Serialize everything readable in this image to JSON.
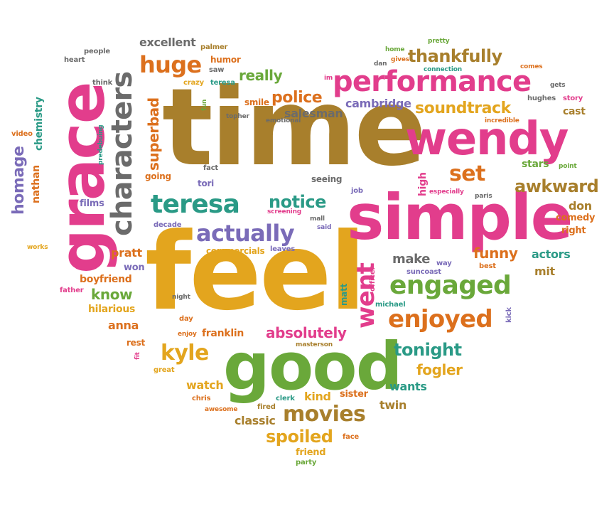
{
  "colors": {
    "brown": "#a87f2c",
    "pink": "#e23d8c",
    "yellow": "#e3a51e",
    "green": "#6aa83a",
    "teal": "#2a9a86",
    "orange": "#dc701d",
    "purple": "#7a6bb8",
    "gray": "#6b6b6b"
  },
  "words": [
    {
      "text": "time",
      "color": "brown"
    },
    {
      "text": "feel",
      "color": "yellow"
    },
    {
      "text": "simple",
      "color": "pink"
    },
    {
      "text": "grace",
      "color": "pink"
    },
    {
      "text": "good",
      "color": "green"
    },
    {
      "text": "wendy",
      "color": "pink"
    },
    {
      "text": "characters",
      "color": "gray"
    },
    {
      "text": "performance",
      "color": "pink"
    },
    {
      "text": "teresa",
      "color": "teal"
    },
    {
      "text": "actually",
      "color": "purple"
    },
    {
      "text": "engaged",
      "color": "green"
    },
    {
      "text": "enjoyed",
      "color": "orange"
    },
    {
      "text": "went",
      "color": "pink"
    },
    {
      "text": "huge",
      "color": "orange"
    },
    {
      "text": "thankfully",
      "color": "brown"
    },
    {
      "text": "movies",
      "color": "brown"
    },
    {
      "text": "kyle",
      "color": "yellow"
    },
    {
      "text": "set",
      "color": "orange"
    },
    {
      "text": "awkward",
      "color": "brown"
    },
    {
      "text": "homage",
      "color": "purple"
    },
    {
      "text": "superbad",
      "color": "orange"
    },
    {
      "text": "soundtrack",
      "color": "yellow"
    },
    {
      "text": "police",
      "color": "orange"
    },
    {
      "text": "notice",
      "color": "teal"
    },
    {
      "text": "absolutely",
      "color": "pink"
    },
    {
      "text": "spoiled",
      "color": "yellow"
    },
    {
      "text": "tonight",
      "color": "teal"
    },
    {
      "text": "really",
      "color": "green"
    },
    {
      "text": "excellent",
      "color": "gray"
    },
    {
      "text": "funny",
      "color": "orange"
    },
    {
      "text": "know",
      "color": "green"
    },
    {
      "text": "fogler",
      "color": "yellow"
    },
    {
      "text": "cambridge",
      "color": "purple"
    },
    {
      "text": "salesman",
      "color": "gray"
    },
    {
      "text": "make",
      "color": "gray"
    },
    {
      "text": "pratt",
      "color": "orange"
    },
    {
      "text": "anna",
      "color": "orange"
    },
    {
      "text": "hilarious",
      "color": "yellow"
    },
    {
      "text": "nathan",
      "color": "orange"
    },
    {
      "text": "chemistry",
      "color": "teal"
    },
    {
      "text": "actors",
      "color": "teal"
    },
    {
      "text": "stars",
      "color": "green"
    },
    {
      "text": "comedy",
      "color": "orange"
    },
    {
      "text": "don",
      "color": "brown"
    },
    {
      "text": "right",
      "color": "orange"
    },
    {
      "text": "mit",
      "color": "brown"
    },
    {
      "text": "cast",
      "color": "brown"
    },
    {
      "text": "twin",
      "color": "brown"
    },
    {
      "text": "classic",
      "color": "brown"
    },
    {
      "text": "watch",
      "color": "yellow"
    },
    {
      "text": "kind",
      "color": "yellow"
    },
    {
      "text": "wants",
      "color": "teal"
    },
    {
      "text": "sister",
      "color": "orange"
    },
    {
      "text": "friend",
      "color": "yellow"
    },
    {
      "text": "franklin",
      "color": "orange"
    },
    {
      "text": "boyfriend",
      "color": "orange"
    },
    {
      "text": "won",
      "color": "purple"
    },
    {
      "text": "commercials",
      "color": "yellow"
    },
    {
      "text": "matt",
      "color": "teal"
    },
    {
      "text": "high",
      "color": "pink"
    },
    {
      "text": "films",
      "color": "purple"
    },
    {
      "text": "smile",
      "color": "orange"
    },
    {
      "text": "humor",
      "color": "orange"
    },
    {
      "text": "teresa",
      "color": "teal"
    },
    {
      "text": "going",
      "color": "orange"
    },
    {
      "text": "tori",
      "color": "purple"
    },
    {
      "text": "seeing",
      "color": "gray"
    },
    {
      "text": "rest",
      "color": "orange"
    },
    {
      "text": "decade",
      "color": "purple"
    },
    {
      "text": "officer",
      "color": "pink"
    },
    {
      "text": "michael",
      "color": "teal"
    },
    {
      "text": "suncoast",
      "color": "purple"
    },
    {
      "text": "way",
      "color": "purple"
    },
    {
      "text": "best",
      "color": "orange"
    },
    {
      "text": "kick",
      "color": "purple"
    },
    {
      "text": "masterson",
      "color": "brown"
    },
    {
      "text": "clerk",
      "color": "teal"
    },
    {
      "text": "fired",
      "color": "brown"
    },
    {
      "text": "face",
      "color": "orange"
    },
    {
      "text": "party",
      "color": "green"
    },
    {
      "text": "great",
      "color": "yellow"
    },
    {
      "text": "chris",
      "color": "orange"
    },
    {
      "text": "awesome",
      "color": "orange"
    },
    {
      "text": "enjoy",
      "color": "orange"
    },
    {
      "text": "day",
      "color": "orange"
    },
    {
      "text": "night",
      "color": "gray"
    },
    {
      "text": "fit",
      "color": "pink"
    },
    {
      "text": "father",
      "color": "pink"
    },
    {
      "text": "works",
      "color": "yellow"
    },
    {
      "text": "video",
      "color": "orange"
    },
    {
      "text": "predebuing",
      "color": "teal"
    },
    {
      "text": "think",
      "color": "gray"
    },
    {
      "text": "heart",
      "color": "gray"
    },
    {
      "text": "people",
      "color": "gray"
    },
    {
      "text": "palmer",
      "color": "brown"
    },
    {
      "text": "saw",
      "color": "gray"
    },
    {
      "text": "crazy",
      "color": "yellow"
    },
    {
      "text": "fun",
      "color": "green"
    },
    {
      "text": "topher",
      "color": "gray"
    },
    {
      "text": "emotional",
      "color": "gray"
    },
    {
      "text": "fact",
      "color": "gray"
    },
    {
      "text": "screening",
      "color": "pink"
    },
    {
      "text": "mall",
      "color": "gray"
    },
    {
      "text": "said",
      "color": "purple"
    },
    {
      "text": "leaves",
      "color": "purple"
    },
    {
      "text": "job",
      "color": "purple"
    },
    {
      "text": "especially",
      "color": "pink"
    },
    {
      "text": "paris",
      "color": "gray"
    },
    {
      "text": "point",
      "color": "green"
    },
    {
      "text": "incredible",
      "color": "orange"
    },
    {
      "text": "hughes",
      "color": "gray"
    },
    {
      "text": "story",
      "color": "pink"
    },
    {
      "text": "gets",
      "color": "gray"
    },
    {
      "text": "comes",
      "color": "orange"
    },
    {
      "text": "connection",
      "color": "teal"
    },
    {
      "text": "home",
      "color": "green"
    },
    {
      "text": "gives",
      "color": "orange"
    },
    {
      "text": "dan",
      "color": "gray"
    },
    {
      "text": "pretty",
      "color": "green"
    },
    {
      "text": "im",
      "color": "pink"
    }
  ]
}
